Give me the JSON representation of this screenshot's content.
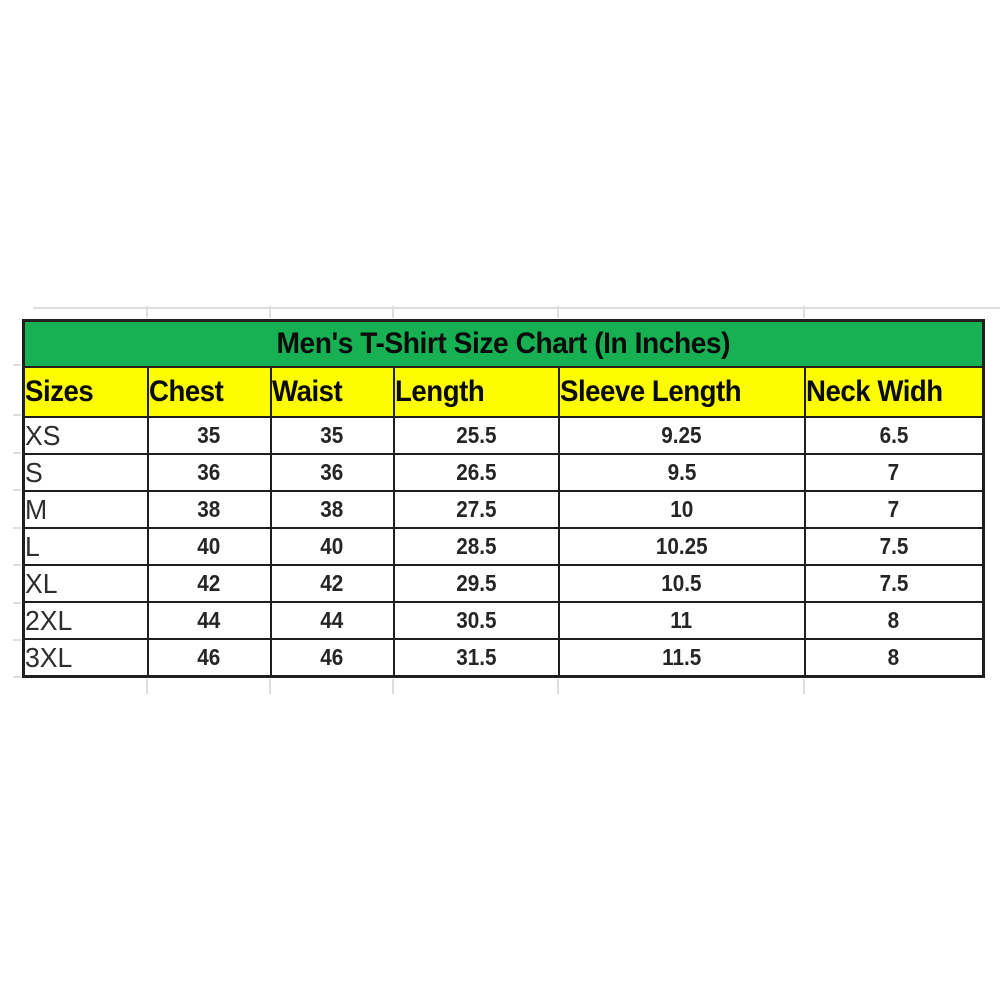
{
  "chart_data": {
    "type": "table",
    "title": "Men's T-Shirt Size Chart (In Inches)",
    "columns": [
      "Sizes",
      "Chest",
      "Waist",
      "Length",
      "Sleeve Length",
      "Neck Widh"
    ],
    "rows": [
      [
        "XS",
        "35",
        "35",
        "25.5",
        "9.25",
        "6.5"
      ],
      [
        "S",
        "36",
        "36",
        "26.5",
        "9.5",
        "7"
      ],
      [
        "M",
        "38",
        "38",
        "27.5",
        "10",
        "7"
      ],
      [
        "L",
        "40",
        "40",
        "28.5",
        "10.25",
        "7.5"
      ],
      [
        "XL",
        "42",
        "42",
        "29.5",
        "10.5",
        "7.5"
      ],
      [
        "2XL",
        "44",
        "44",
        "30.5",
        "11",
        "8"
      ],
      [
        "3XL",
        "46",
        "46",
        "31.5",
        "11.5",
        "8"
      ]
    ],
    "units": "inches",
    "colors": {
      "title_background": "#17b053",
      "header_background": "#fdfd00",
      "border": "#1f1f1f",
      "text": "#0b0b0b"
    }
  }
}
